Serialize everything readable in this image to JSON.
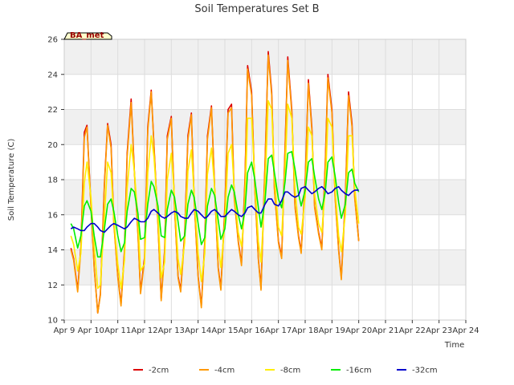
{
  "chart_data": {
    "type": "line",
    "title": "Soil Temperatures Set B",
    "xlabel": "Time",
    "ylabel": "Soil Temperature (C)",
    "badge": "BA_met",
    "x_ticks": [
      "Apr 9",
      "Apr 10",
      "Apr 11",
      "Apr 12",
      "Apr 13",
      "Apr 14",
      "Apr 15",
      "Apr 16",
      "Apr 17",
      "Apr 18",
      "Apr 19",
      "Apr 20",
      "Apr 21",
      "Apr 22",
      "Apr 23",
      "Apr 24"
    ],
    "y_ticks": [
      10,
      12,
      14,
      16,
      18,
      20,
      22,
      24,
      26
    ],
    "xlim": [
      9,
      24
    ],
    "ylim": [
      10,
      26
    ],
    "grid": true,
    "legend_position": "bottom",
    "x_day": [
      9.25,
      9.35,
      9.5,
      9.62,
      9.75,
      9.85,
      10.0,
      10.12,
      10.25,
      10.35,
      10.5,
      10.62,
      10.75,
      10.85,
      11.0,
      11.12,
      11.25,
      11.35,
      11.5,
      11.62,
      11.75,
      11.85,
      12.0,
      12.12,
      12.25,
      12.35,
      12.5,
      12.62,
      12.75,
      12.85,
      13.0,
      13.12,
      13.25,
      13.35,
      13.5,
      13.62,
      13.75,
      13.85,
      14.0,
      14.12,
      14.25,
      14.35,
      14.5,
      14.62,
      14.75,
      14.85,
      15.0,
      15.12,
      15.25,
      15.35,
      15.5,
      15.62,
      15.75,
      15.85,
      16.0,
      16.12,
      16.25,
      16.35,
      16.5,
      16.62,
      16.75,
      16.85,
      17.0,
      17.12,
      17.25,
      17.35,
      17.5,
      17.62,
      17.75,
      17.85,
      18.0,
      18.12,
      18.25,
      18.35,
      18.5,
      18.62,
      18.75,
      18.85,
      19.0,
      19.12,
      19.25,
      19.35,
      19.5,
      19.62,
      19.75,
      19.85,
      20.0,
      20.12,
      20.25,
      20.35,
      20.5,
      20.62,
      20.75,
      20.85,
      21.0,
      21.12,
      21.25,
      21.35,
      21.5,
      21.62,
      21.75,
      21.85,
      22.0,
      22.12,
      22.25,
      22.35,
      22.5,
      22.62,
      22.75,
      22.85,
      23.0,
      23.12,
      23.25
    ],
    "series": [
      {
        "name": "-2cm",
        "color": "#dd0000",
        "values": [
          14.1,
          13.5,
          11.7,
          14.2,
          20.7,
          21.1,
          16.5,
          13.0,
          10.4,
          11.5,
          17.8,
          21.2,
          20.0,
          15.6,
          12.5,
          10.9,
          14.0,
          19.5,
          22.6,
          18.5,
          15.0,
          11.6,
          13.6,
          21.0,
          23.1,
          20.0,
          15.5,
          11.2,
          14.0,
          20.5,
          21.6,
          16.5,
          12.5,
          11.7,
          15.0,
          20.5,
          21.8,
          17.0,
          12.5,
          10.8,
          14.5,
          20.5,
          22.2,
          17.5,
          13.0,
          11.8,
          16.5,
          22.0,
          22.3,
          17.0,
          14.5,
          13.2,
          18.0,
          24.5,
          23.0,
          17.5,
          13.5,
          11.8,
          19.0,
          25.3,
          23.0,
          17.5,
          14.5,
          13.6,
          20.0,
          25.0,
          22.0,
          16.5,
          14.8,
          13.9,
          18.0,
          23.7,
          21.0,
          16.5,
          15.0,
          14.1,
          19.0,
          24.0,
          22.0,
          17.0,
          14.0,
          12.4,
          17.0,
          23.0,
          21.2,
          17.0,
          14.5
        ]
      },
      {
        "name": "-4cm",
        "color": "#ff9900",
        "values": [
          14.0,
          13.4,
          11.6,
          14.0,
          20.4,
          21.0,
          16.4,
          12.9,
          10.4,
          11.4,
          17.6,
          21.1,
          19.8,
          15.5,
          12.4,
          10.8,
          13.8,
          19.3,
          22.4,
          18.4,
          14.9,
          11.5,
          13.4,
          20.8,
          23.0,
          19.9,
          15.4,
          11.1,
          13.8,
          20.3,
          21.5,
          16.4,
          12.4,
          11.6,
          14.8,
          20.3,
          21.7,
          16.9,
          12.4,
          10.7,
          14.3,
          20.3,
          22.1,
          17.4,
          12.9,
          11.7,
          16.3,
          21.8,
          22.1,
          16.9,
          14.4,
          13.1,
          17.8,
          24.3,
          22.8,
          17.4,
          13.4,
          11.7,
          18.8,
          25.1,
          22.8,
          17.4,
          14.4,
          13.5,
          19.8,
          24.8,
          21.8,
          16.4,
          14.7,
          13.8,
          17.8,
          23.5,
          20.8,
          16.4,
          14.9,
          14.0,
          18.8,
          23.8,
          21.8,
          16.9,
          13.9,
          12.3,
          16.8,
          22.8,
          21.0,
          16.9,
          14.5
        ]
      },
      {
        "name": "-8cm",
        "color": "#ffee00",
        "values": [
          14.8,
          14.3,
          12.8,
          13.8,
          17.8,
          19.0,
          17.0,
          14.2,
          11.8,
          12.0,
          15.8,
          19.0,
          18.4,
          15.8,
          13.2,
          11.8,
          13.4,
          17.5,
          20.0,
          18.5,
          15.8,
          12.8,
          13.2,
          18.4,
          20.5,
          19.3,
          16.0,
          12.4,
          13.3,
          18.0,
          19.5,
          17.0,
          13.5,
          12.6,
          14.4,
          18.5,
          19.7,
          17.2,
          13.8,
          12.2,
          13.8,
          18.3,
          19.8,
          17.5,
          14.2,
          13.0,
          15.5,
          19.5,
          20.0,
          17.4,
          15.0,
          14.2,
          16.5,
          21.5,
          21.5,
          18.0,
          14.5,
          13.3,
          17.5,
          22.5,
          22.0,
          18.2,
          15.3,
          14.8,
          18.5,
          22.3,
          21.5,
          17.5,
          15.3,
          14.9,
          17.0,
          21.0,
          20.5,
          17.2,
          15.5,
          15.0,
          17.5,
          21.5,
          21.0,
          17.5,
          14.8,
          13.9,
          16.0,
          20.5,
          20.5,
          17.5,
          15.5
        ]
      },
      {
        "name": "-16cm",
        "color": "#00ee00",
        "values": [
          15.5,
          15.2,
          14.1,
          14.8,
          16.5,
          16.8,
          16.2,
          14.8,
          13.6,
          13.6,
          15.2,
          16.6,
          16.9,
          16.2,
          14.8,
          13.9,
          14.4,
          16.2,
          17.5,
          17.3,
          16.1,
          14.6,
          14.7,
          16.6,
          17.9,
          17.6,
          16.5,
          14.8,
          14.7,
          16.3,
          17.4,
          17.0,
          15.6,
          14.5,
          14.8,
          16.6,
          17.4,
          17.0,
          15.5,
          14.3,
          14.7,
          16.5,
          17.5,
          17.1,
          15.7,
          14.6,
          15.2,
          17.0,
          17.7,
          17.3,
          16.0,
          15.2,
          16.2,
          18.4,
          19.0,
          18.0,
          16.4,
          15.3,
          16.8,
          19.2,
          19.4,
          18.4,
          16.9,
          16.4,
          17.9,
          19.5,
          19.6,
          18.6,
          17.2,
          16.5,
          17.4,
          19.0,
          19.2,
          18.2,
          16.9,
          16.3,
          17.3,
          19.0,
          19.3,
          18.2,
          16.7,
          15.8,
          16.6,
          18.4,
          18.6,
          17.8,
          17.3
        ]
      },
      {
        "name": "-32cm",
        "color": "#0000cc",
        "values": [
          15.2,
          15.3,
          15.2,
          15.1,
          15.1,
          15.3,
          15.5,
          15.5,
          15.3,
          15.1,
          15.0,
          15.2,
          15.4,
          15.5,
          15.4,
          15.3,
          15.2,
          15.3,
          15.6,
          15.8,
          15.7,
          15.6,
          15.6,
          15.8,
          16.2,
          16.3,
          16.1,
          15.9,
          15.8,
          15.9,
          16.1,
          16.2,
          16.1,
          15.9,
          15.8,
          15.8,
          16.1,
          16.3,
          16.2,
          16.0,
          15.8,
          15.9,
          16.2,
          16.3,
          16.1,
          15.9,
          15.9,
          16.1,
          16.3,
          16.2,
          16.0,
          15.9,
          16.1,
          16.4,
          16.5,
          16.3,
          16.1,
          16.1,
          16.6,
          16.9,
          16.9,
          16.6,
          16.5,
          16.8,
          17.3,
          17.3,
          17.1,
          17.0,
          17.1,
          17.5,
          17.6,
          17.4,
          17.2,
          17.3,
          17.5,
          17.6,
          17.4,
          17.2,
          17.3,
          17.5,
          17.6,
          17.4,
          17.2,
          17.1,
          17.3,
          17.4,
          17.4
        ]
      }
    ]
  }
}
